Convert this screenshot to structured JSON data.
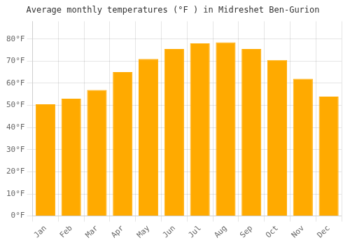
{
  "chart_data": {
    "type": "bar",
    "title": "Average monthly temperatures (°F ) in Midreshet Ben-Gurion",
    "categories": [
      "Jan",
      "Feb",
      "Mar",
      "Apr",
      "May",
      "Jun",
      "Jul",
      "Aug",
      "Sep",
      "Oct",
      "Nov",
      "Dec"
    ],
    "values": [
      50.5,
      53,
      57,
      65,
      71,
      75.5,
      78,
      78.5,
      75.5,
      70.5,
      62,
      54
    ],
    "color": "#FFAA00",
    "ylim": [
      0,
      88
    ],
    "yticks": [
      {
        "value": 0,
        "label": "0°F"
      },
      {
        "value": 10,
        "label": "10°F"
      },
      {
        "value": 20,
        "label": "20°F"
      },
      {
        "value": 30,
        "label": "30°F"
      },
      {
        "value": 40,
        "label": "40°F"
      },
      {
        "value": 50,
        "label": "50°F"
      },
      {
        "value": 60,
        "label": "60°F"
      },
      {
        "value": 70,
        "label": "70°F"
      },
      {
        "value": 80,
        "label": "80°F"
      }
    ],
    "grid": true
  }
}
